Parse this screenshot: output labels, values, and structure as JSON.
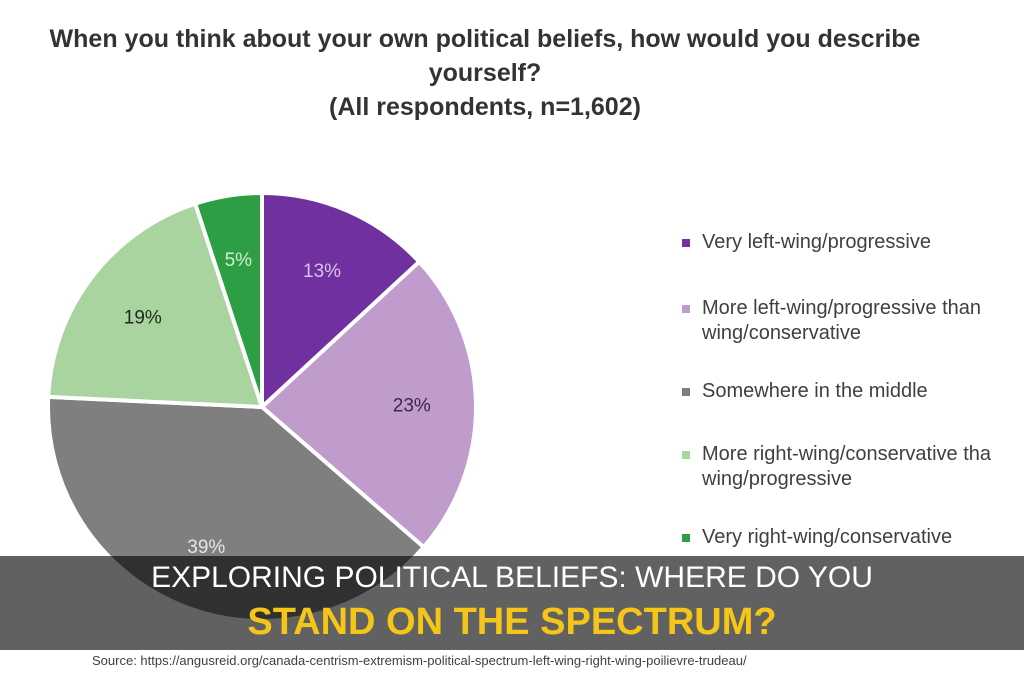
{
  "chart_data": {
    "type": "pie",
    "title": [
      "When you think about your own political beliefs, how would you describe",
      "yourself?",
      "(All respondents, n=1,602)"
    ],
    "slices": [
      {
        "label": [
          "Very left-wing/progressive"
        ],
        "value": 13,
        "display": "13%",
        "color": "#7030a0",
        "label_color": "#d9c3ea"
      },
      {
        "label": [
          "More left-wing/progressive than",
          "wing/conservative"
        ],
        "value": 23,
        "display": "23%",
        "color": "#c09ccc",
        "label_color": "#3a2a3f"
      },
      {
        "label": [
          "Somewhere in the middle"
        ],
        "value": 39,
        "display": "39%",
        "color": "#7f7f7f",
        "label_color": "#e6e6e6"
      },
      {
        "label": [
          "More right-wing/conservative tha",
          "wing/progressive"
        ],
        "value": 19,
        "display": "19%",
        "color": "#a9d4a0",
        "label_color": "#1e2a1c"
      },
      {
        "label": [
          "Very right-wing/conservative"
        ],
        "value": 5,
        "display": "5%",
        "color": "#2e9e44",
        "label_color": "#cfeed5"
      }
    ],
    "legend_position": "right",
    "source": "Source:  https://angusreid.org/canada-centrism-extremism-political-spectrum-left-wing-right-wing-poilievre-trudeau/"
  },
  "banner": {
    "line1": "EXPLORING POLITICAL BELIEFS: WHERE DO YOU",
    "line2": "STAND ON THE SPECTRUM?"
  }
}
